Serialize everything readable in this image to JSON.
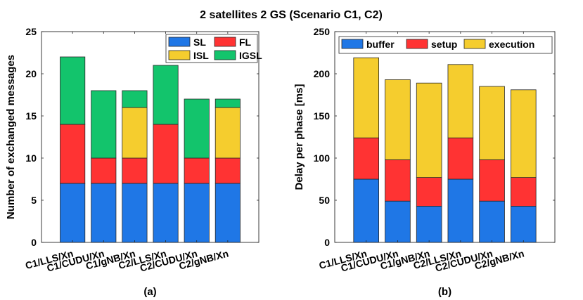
{
  "figure_title": "2 satellites 2 GS (Scenario C1, C2)",
  "chart_data": [
    {
      "type": "bar",
      "stacked": true,
      "caption": "(a)",
      "title": "",
      "xlabel": "",
      "ylabel": "Number of exchanged messages",
      "ylim": [
        0,
        25
      ],
      "yticks": [
        "0",
        "5",
        "10",
        "15",
        "20",
        "25"
      ],
      "legend_position": "top-right",
      "legend_columns": 2,
      "categories": [
        "C1/LLS/Xn",
        "C1/CUDU/Xn",
        "C1/gNB/Xn",
        "C2/LLS/Xn",
        "C2/CUDU/Xn",
        "C2/gNB/Xn"
      ],
      "series": [
        {
          "name": "SL",
          "color": "#1f77e6",
          "values": [
            7,
            7,
            7,
            7,
            7,
            7
          ]
        },
        {
          "name": "FL",
          "color": "#ff3333",
          "values": [
            7,
            3,
            3,
            7,
            3,
            3
          ]
        },
        {
          "name": "ISL",
          "color": "#f5cd2e",
          "values": [
            0,
            0,
            6,
            0,
            0,
            6
          ]
        },
        {
          "name": "IGSL",
          "color": "#13c46c",
          "values": [
            8,
            8,
            2,
            7,
            7,
            1
          ]
        }
      ]
    },
    {
      "type": "bar",
      "stacked": true,
      "caption": "(b)",
      "title": "",
      "xlabel": "",
      "ylabel": "Delay per phase [ms]",
      "ylim": [
        0,
        250
      ],
      "yticks": [
        "0",
        "50",
        "100",
        "150",
        "200",
        "250"
      ],
      "legend_position": "top",
      "legend_columns": 3,
      "categories": [
        "C1/LLS/Xn",
        "C1/CUDU/Xn",
        "C1/gNB/Xn",
        "C2/LLS/Xn",
        "C2/CUDU/Xn",
        "C2/gNB/Xn"
      ],
      "series": [
        {
          "name": "buffer",
          "color": "#1f77e6",
          "values": [
            75,
            49,
            43,
            75,
            49,
            43
          ]
        },
        {
          "name": "setup",
          "color": "#ff3333",
          "values": [
            49,
            49,
            34,
            49,
            49,
            34
          ]
        },
        {
          "name": "execution",
          "color": "#f5cd2e",
          "values": [
            95,
            95,
            112,
            87,
            87,
            104
          ]
        }
      ]
    }
  ]
}
